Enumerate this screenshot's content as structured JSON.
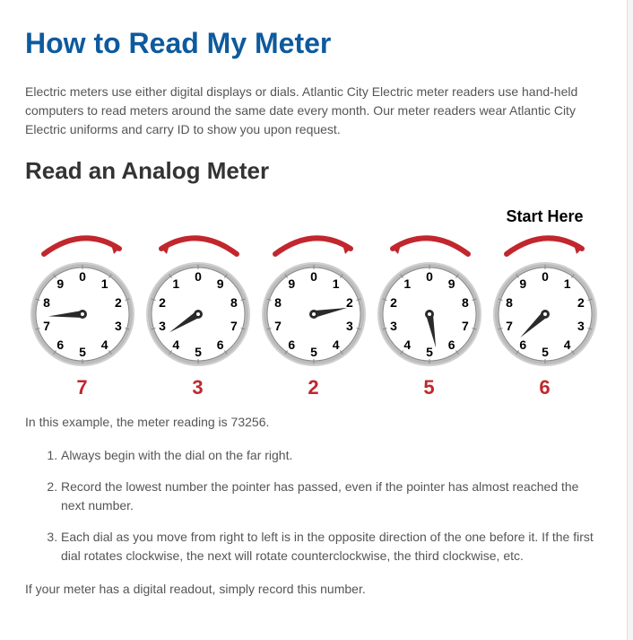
{
  "title": "How to Read My Meter",
  "intro": "Electric meters use either digital displays or dials. Atlantic City Electric meter readers use hand-held computers to read meters around the same date every month. Our meter readers wear Atlantic City Electric uniforms and carry ID to show you upon request.",
  "section_heading": "Read an Analog Meter",
  "start_here": "Start Here",
  "dials": [
    {
      "reading": "7",
      "orientation": "cw",
      "pointer_value": 7.4,
      "arrow_dir": "cw",
      "start_label": false
    },
    {
      "reading": "3",
      "orientation": "ccw",
      "pointer_value": 3.4,
      "arrow_dir": "ccw",
      "start_label": false
    },
    {
      "reading": "2",
      "orientation": "cw",
      "pointer_value": 2.2,
      "arrow_dir": "cw",
      "start_label": false
    },
    {
      "reading": "5",
      "orientation": "ccw",
      "pointer_value": 5.3,
      "arrow_dir": "ccw",
      "start_label": false
    },
    {
      "reading": "6",
      "orientation": "cw",
      "pointer_value": 6.3,
      "arrow_dir": "cw",
      "start_label": true
    }
  ],
  "colors": {
    "dial_outline": "#9a9a9a",
    "dial_inner": "#ffffff",
    "numeral": "#000000",
    "pointer": "#2a2a2a",
    "arrow": "#c1272d",
    "reading": "#c1272d",
    "heading": "#0d5a9e",
    "body_text": "#555555"
  },
  "example_line": "In this example, the meter reading is 73256.",
  "steps": [
    "Always begin with the dial on the far right.",
    "Record the lowest number the pointer has passed, even if the pointer has almost reached the next number.",
    "Each dial as you move from right to left is in the opposite direction of the one before it. If the first dial rotates clockwise, the next will rotate counterclockwise, the third clockwise, etc."
  ],
  "digital_note": "If your meter has a digital readout, simply record this number."
}
